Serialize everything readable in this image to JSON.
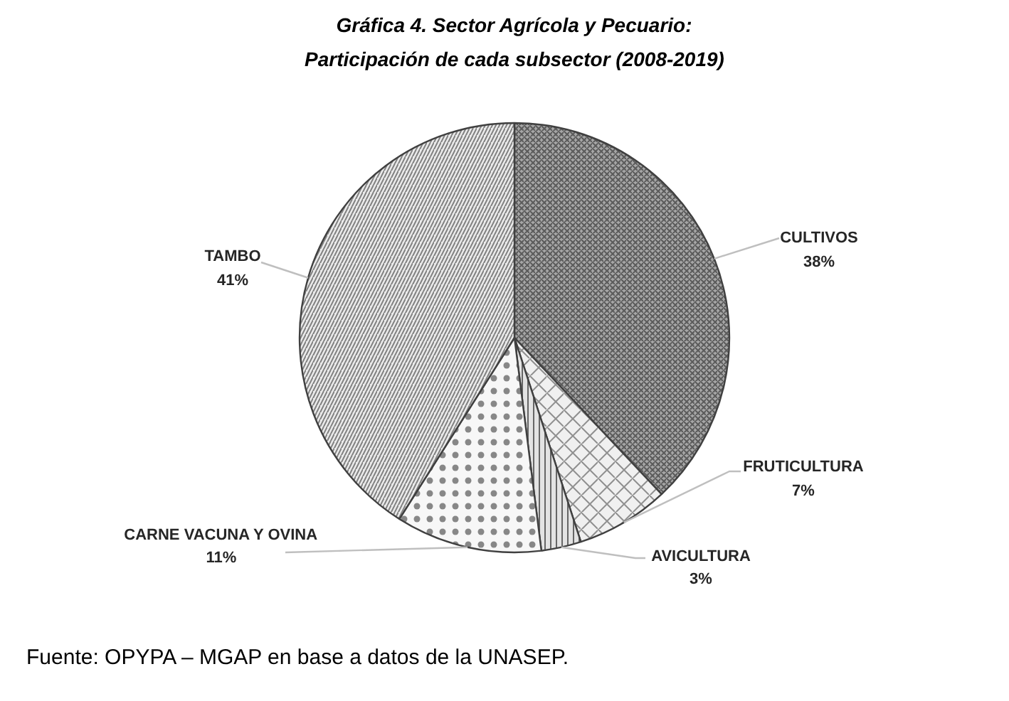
{
  "chart_data": {
    "type": "pie",
    "title": "Gráfica 4. Sector Agrícola y Pecuario:\nParticipación de cada subsector (2008-2019)",
    "categories": [
      "CULTIVOS",
      "FRUTICULTURA",
      "AVICULTURA",
      "CARNE VACUNA Y OVINA",
      "TAMBO"
    ],
    "values": [
      38,
      7,
      3,
      11,
      41
    ],
    "value_labels": [
      "38%",
      "7%",
      "3%",
      "11%",
      "41%"
    ],
    "colors": [
      "#a6a6a6",
      "#f0f0f0",
      "#e3e3e3",
      "#f7f7f7",
      "#ebebeb"
    ],
    "annotations": [
      "Fuente: OPYPA – MGAP en base a datos de la UNASEP."
    ]
  }
}
